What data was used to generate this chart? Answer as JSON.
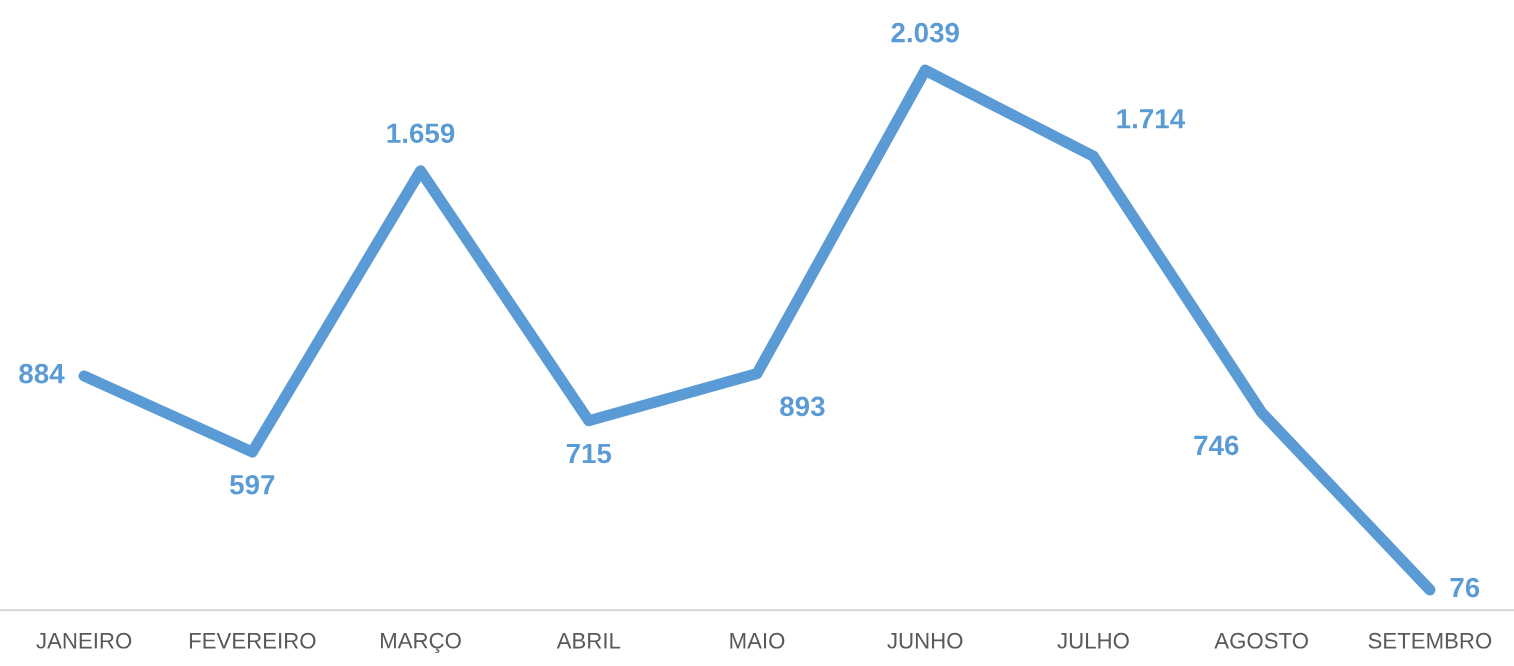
{
  "chart_data": {
    "type": "line",
    "categories": [
      "JANEIRO",
      "FEVEREIRO",
      "MARÇO",
      "ABRIL",
      "MAIO",
      "JUNHO",
      "JULHO",
      "AGOSTO",
      "SETEMBRO"
    ],
    "values": [
      884,
      597,
      1659,
      715,
      893,
      2039,
      1714,
      746,
      76
    ],
    "value_labels": [
      "884",
      "597",
      "1.659",
      "715",
      "893",
      "2.039",
      "1.714",
      "746",
      "76"
    ],
    "color": "#5b9bd5",
    "tick_labels": "x",
    "grid": false,
    "legend": false,
    "marker": "none",
    "line_style": "solid"
  }
}
